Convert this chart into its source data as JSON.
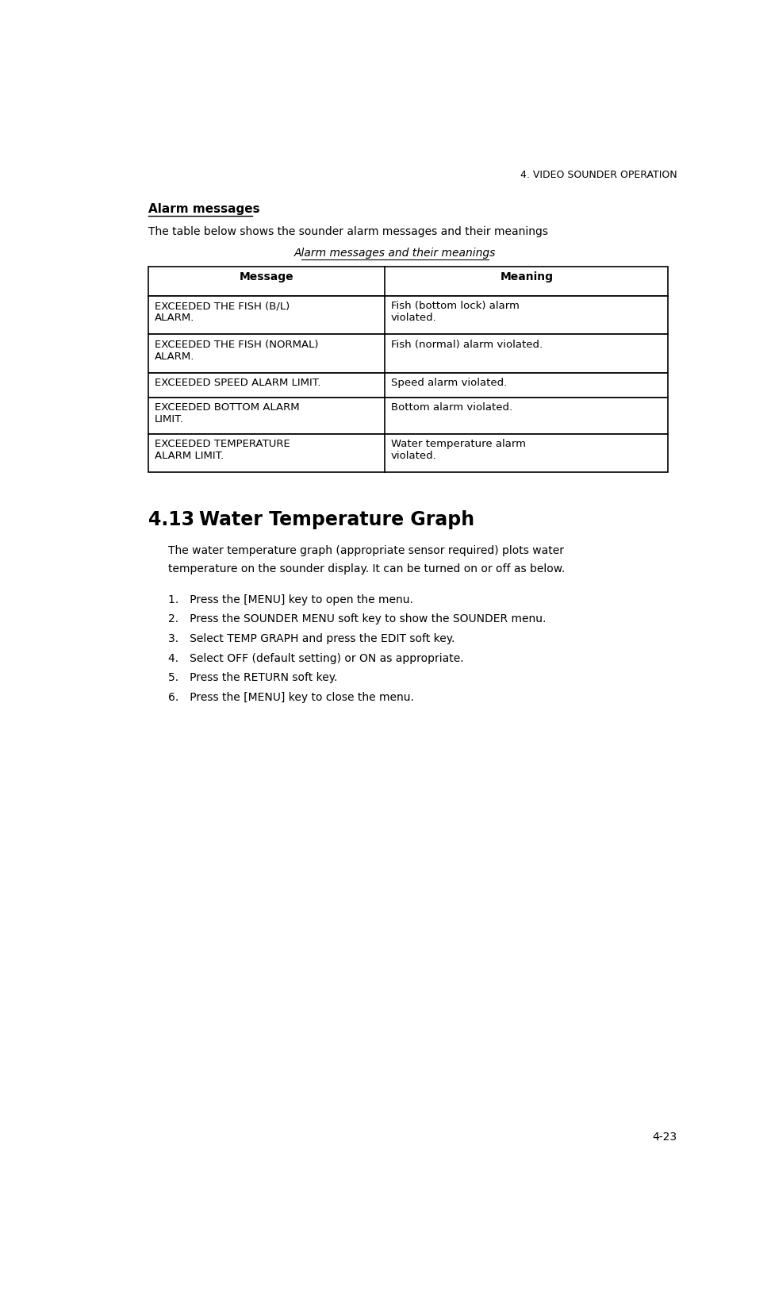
{
  "page_header": "4. VIDEO SOUNDER OPERATION",
  "section_heading": "Alarm messages",
  "intro_text": "The table below shows the sounder alarm messages and their meanings",
  "table_caption": "Alarm messages and their meanings",
  "table_headers": [
    "Message",
    "Meaning"
  ],
  "table_rows": [
    [
      "EXCEEDED THE FISH (B/L)\nALARM.",
      "Fish (bottom lock) alarm\nviolated."
    ],
    [
      "EXCEEDED THE FISH (NORMAL)\nALARM.",
      "Fish (normal) alarm violated."
    ],
    [
      "EXCEEDED SPEED ALARM LIMIT.",
      "Speed alarm violated."
    ],
    [
      "EXCEEDED BOTTOM ALARM\nLIMIT.",
      "Bottom alarm violated."
    ],
    [
      "EXCEEDED TEMPERATURE\nALARM LIMIT.",
      "Water temperature alarm\nviolated."
    ]
  ],
  "section_413_number": "4.13",
  "section_413_title": "Water Temperature Graph",
  "section_413_body_lines": [
    "The water temperature graph (appropriate sensor required) plots water",
    "temperature on the sounder display. It can be turned on or off as below."
  ],
  "steps": [
    "Press the [MENU] key to open the menu.",
    "Press the SOUNDER MENU soft key to show the SOUNDER menu.",
    "Select TEMP GRAPH and press the EDIT soft key.",
    "Select OFF (default setting) or ON as appropriate.",
    "Press the RETURN soft key.",
    "Press the [MENU] key to close the menu."
  ],
  "page_number": "4-23",
  "bg_color": "#ffffff",
  "text_color": "#000000",
  "table_border_color": "#000000"
}
